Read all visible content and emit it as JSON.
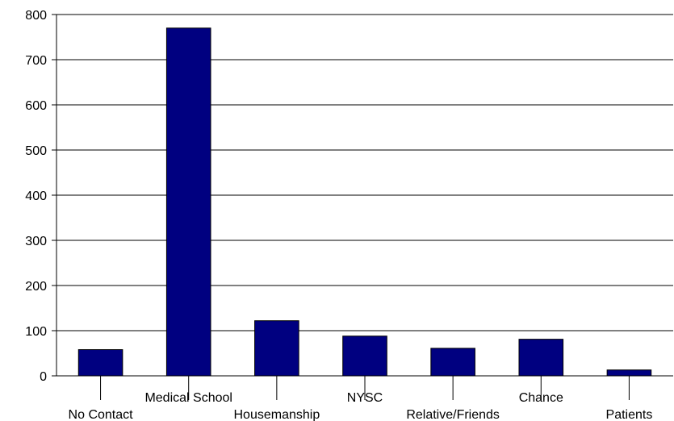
{
  "chart_data": {
    "type": "bar",
    "categories": [
      "No Contact",
      "Medical School",
      "Housemanship",
      "NYSC",
      "Relative/Friends",
      "Chance",
      "Patients"
    ],
    "values": [
      58,
      770,
      122,
      88,
      61,
      81,
      13
    ],
    "ylim": [
      0,
      800
    ],
    "yticks": [
      0,
      100,
      200,
      300,
      400,
      500,
      600,
      700,
      800
    ],
    "grid": true,
    "legend": "none",
    "bar_color": "#000080"
  }
}
